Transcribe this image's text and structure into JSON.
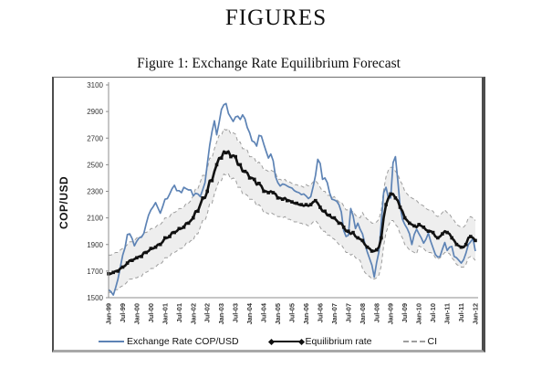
{
  "page": {
    "title": "FIGURES"
  },
  "figure": {
    "caption": "Figure 1: Exchange Rate Equilibrium Forecast"
  },
  "chart_data": {
    "type": "line",
    "title": "Figure 1: Exchange Rate Equilibrium Forecast",
    "ylabel": "COP/USD",
    "xlabel": "",
    "ylim": [
      1500,
      3100
    ],
    "yticks": [
      1500,
      1700,
      1900,
      2100,
      2300,
      2500,
      2700,
      2900,
      3100
    ],
    "grid": false,
    "legend_position": "bottom",
    "x_frequency": "monthly",
    "xtick_labels": [
      "Jan-99",
      "Jul-99",
      "Jan-00",
      "Jul-00",
      "Jan-01",
      "Jul-01",
      "Jan-02",
      "Jul-02",
      "Jan-03",
      "Jul-03",
      "Jan-04",
      "Jul-04",
      "Jan-05",
      "Jul-05",
      "Jan-06",
      "Jul-06",
      "Jan-07",
      "Jul-07",
      "Jan-08",
      "Jul-08",
      "Jan-09",
      "Jul-09",
      "Jan-10",
      "Jul-10",
      "Jan-11",
      "Jul-11",
      "Jan-12"
    ],
    "colors": {
      "exchange_rate": "#5d83b5",
      "equilibrium": "#111111",
      "ci_line": "#9e9e9e",
      "ci_fill": "#ebebeb",
      "axis": "#8c8c8c",
      "tick_text": "#333333"
    },
    "legend": [
      {
        "label": "Exchange Rate COP/USD",
        "swatch": "line",
        "color_key": "exchange_rate"
      },
      {
        "label": "Equilibrium rate",
        "swatch": "line-diamonds",
        "color_key": "equilibrium"
      },
      {
        "label": "CI",
        "swatch": "dashed",
        "color_key": "ci_line"
      }
    ],
    "series": [
      {
        "name": "Exchange Rate COP/USD",
        "style": "solid",
        "values": [
          1560,
          1545,
          1520,
          1575,
          1640,
          1730,
          1820,
          1875,
          1975,
          1980,
          1945,
          1890,
          1925,
          1950,
          1955,
          1985,
          2055,
          2120,
          2160,
          2185,
          2215,
          2175,
          2135,
          2185,
          2240,
          2245,
          2280,
          2320,
          2345,
          2305,
          2305,
          2290,
          2330,
          2320,
          2310,
          2310,
          2265,
          2285,
          2280,
          2260,
          2310,
          2365,
          2505,
          2645,
          2750,
          2830,
          2725,
          2815,
          2915,
          2950,
          2960,
          2885,
          2855,
          2825,
          2860,
          2865,
          2840,
          2875,
          2845,
          2780,
          2740,
          2680,
          2670,
          2640,
          2720,
          2715,
          2655,
          2600,
          2550,
          2580,
          2530,
          2410,
          2365,
          2340,
          2355,
          2350,
          2340,
          2330,
          2325,
          2305,
          2295,
          2290,
          2275,
          2280,
          2265,
          2245,
          2260,
          2335,
          2420,
          2540,
          2510,
          2390,
          2400,
          2365,
          2290,
          2240,
          2235,
          2225,
          2200,
          2145,
          2005,
          1960,
          1970,
          2170,
          2115,
          2020,
          2060,
          2015,
          1980,
          1905,
          1845,
          1795,
          1745,
          1655,
          1765,
          1845,
          2065,
          2290,
          2330,
          2250,
          2250,
          2515,
          2560,
          2380,
          2190,
          2090,
          2050,
          2020,
          1980,
          1900,
          1975,
          2015,
          1980,
          1950,
          1910,
          1940,
          1985,
          1925,
          1875,
          1825,
          1805,
          1810,
          1865,
          1915,
          1855,
          1880,
          1885,
          1810,
          1800,
          1780,
          1760,
          1785,
          1835,
          1900,
          1920,
          1945,
          1850
        ]
      },
      {
        "name": "Equilibrium rate",
        "style": "solid-markers",
        "values": [
          1680,
          1680,
          1690,
          1700,
          1700,
          1720,
          1730,
          1740,
          1760,
          1780,
          1780,
          1790,
          1800,
          1810,
          1810,
          1840,
          1840,
          1850,
          1870,
          1870,
          1880,
          1900,
          1900,
          1920,
          1950,
          1950,
          1960,
          1990,
          1990,
          2000,
          2020,
          2020,
          2030,
          2060,
          2060,
          2080,
          2100,
          2150,
          2150,
          2200,
          2250,
          2250,
          2300,
          2380,
          2380,
          2450,
          2500,
          2550,
          2550,
          2600,
          2590,
          2600,
          2560,
          2570,
          2560,
          2500,
          2500,
          2450,
          2450,
          2440,
          2400,
          2400,
          2390,
          2350,
          2360,
          2340,
          2300,
          2300,
          2290,
          2300,
          2290,
          2280,
          2250,
          2250,
          2240,
          2250,
          2230,
          2230,
          2220,
          2210,
          2210,
          2200,
          2200,
          2190,
          2200,
          2190,
          2200,
          2220,
          2230,
          2210,
          2180,
          2150,
          2150,
          2120,
          2120,
          2100,
          2100,
          2080,
          2060,
          2060,
          2030,
          2000,
          2000,
          1980,
          1990,
          1960,
          1950,
          1940,
          1930,
          1900,
          1880,
          1870,
          1850,
          1850,
          1860,
          1880,
          1950,
          2100,
          2200,
          2250,
          2280,
          2280,
          2250,
          2230,
          2180,
          2150,
          2100,
          2080,
          2060,
          2050,
          2040,
          2030,
          2050,
          2040,
          2030,
          2010,
          2000,
          2000,
          1990,
          1960,
          1950,
          1960,
          1980,
          2000,
          1990,
          1980,
          1950,
          1930,
          1900,
          1890,
          1880,
          1880,
          1900,
          1950,
          1960,
          1950,
          1930
        ]
      },
      {
        "name": "CI upper",
        "style": "dashed",
        "values": [
          1820,
          1820,
          1830,
          1840,
          1840,
          1860,
          1870,
          1880,
          1900,
          1920,
          1920,
          1930,
          1950,
          1960,
          1960,
          1990,
          1990,
          2000,
          2020,
          2020,
          2030,
          2050,
          2050,
          2070,
          2100,
          2100,
          2110,
          2140,
          2140,
          2150,
          2170,
          2170,
          2180,
          2210,
          2210,
          2230,
          2270,
          2320,
          2320,
          2370,
          2420,
          2420,
          2470,
          2550,
          2550,
          2620,
          2670,
          2720,
          2720,
          2770,
          2760,
          2770,
          2730,
          2740,
          2730,
          2670,
          2670,
          2620,
          2620,
          2610,
          2560,
          2560,
          2550,
          2510,
          2520,
          2500,
          2460,
          2460,
          2450,
          2460,
          2450,
          2440,
          2390,
          2390,
          2380,
          2390,
          2370,
          2370,
          2360,
          2350,
          2350,
          2340,
          2340,
          2330,
          2350,
          2340,
          2350,
          2370,
          2380,
          2360,
          2330,
          2300,
          2300,
          2270,
          2270,
          2250,
          2260,
          2240,
          2220,
          2220,
          2190,
          2160,
          2160,
          2140,
          2150,
          2120,
          2110,
          2100,
          2140,
          2110,
          2090,
          2080,
          2060,
          2060,
          2070,
          2090,
          2160,
          2310,
          2410,
          2460,
          2480,
          2480,
          2450,
          2430,
          2380,
          2350,
          2300,
          2280,
          2260,
          2250,
          2240,
          2230,
          2210,
          2200,
          2190,
          2170,
          2160,
          2160,
          2150,
          2120,
          2110,
          2120,
          2140,
          2160,
          2140,
          2130,
          2100,
          2080,
          2050,
          2040,
          2030,
          2030,
          2050,
          2100,
          2110,
          2100,
          2080
        ]
      },
      {
        "name": "CI lower",
        "style": "dashed",
        "values": [
          1540,
          1540,
          1550,
          1560,
          1560,
          1580,
          1590,
          1600,
          1620,
          1640,
          1640,
          1650,
          1650,
          1660,
          1660,
          1690,
          1690,
          1700,
          1720,
          1720,
          1730,
          1750,
          1750,
          1770,
          1800,
          1800,
          1810,
          1840,
          1840,
          1850,
          1870,
          1870,
          1880,
          1910,
          1910,
          1930,
          1930,
          1980,
          1980,
          2030,
          2080,
          2080,
          2130,
          2210,
          2210,
          2280,
          2330,
          2380,
          2380,
          2430,
          2420,
          2430,
          2390,
          2400,
          2390,
          2330,
          2330,
          2280,
          2280,
          2270,
          2240,
          2240,
          2230,
          2190,
          2200,
          2180,
          2140,
          2140,
          2130,
          2140,
          2130,
          2120,
          2110,
          2110,
          2100,
          2110,
          2090,
          2090,
          2080,
          2070,
          2070,
          2060,
          2060,
          2050,
          2050,
          2040,
          2050,
          2070,
          2080,
          2060,
          2030,
          2000,
          2000,
          1970,
          1970,
          1950,
          1940,
          1920,
          1900,
          1900,
          1870,
          1840,
          1840,
          1820,
          1830,
          1800,
          1790,
          1780,
          1720,
          1690,
          1670,
          1660,
          1640,
          1640,
          1650,
          1670,
          1740,
          1890,
          1990,
          2040,
          2080,
          2080,
          2050,
          2030,
          1980,
          1950,
          1900,
          1880,
          1860,
          1850,
          1840,
          1830,
          1890,
          1880,
          1870,
          1850,
          1840,
          1840,
          1830,
          1800,
          1790,
          1800,
          1820,
          1840,
          1840,
          1830,
          1800,
          1780,
          1750,
          1740,
          1730,
          1730,
          1750,
          1800,
          1810,
          1800,
          1780
        ]
      }
    ]
  }
}
